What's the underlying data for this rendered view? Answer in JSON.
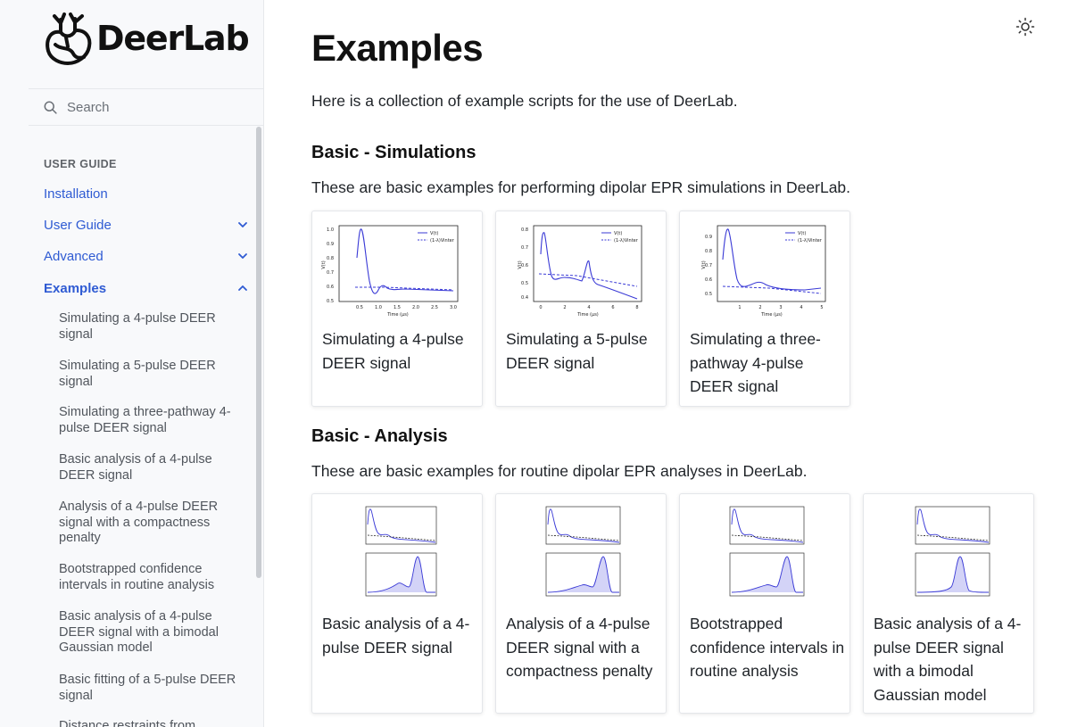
{
  "brand": {
    "name": "DeerLab"
  },
  "search": {
    "placeholder": "Search"
  },
  "sidebar": {
    "caption": "USER GUIDE",
    "top_items": [
      {
        "label": "Installation"
      },
      {
        "label": "User Guide"
      },
      {
        "label": "Advanced"
      },
      {
        "label": "Examples"
      }
    ],
    "sub_items": [
      {
        "label": "Simulating a 4-pulse DEER signal"
      },
      {
        "label": "Simulating a 5-pulse DEER signal"
      },
      {
        "label": "Simulating a three-pathway 4-pulse DEER signal"
      },
      {
        "label": "Basic analysis of a 4-pulse DEER signal"
      },
      {
        "label": "Analysis of a 4-pulse DEER signal with a compactness penalty"
      },
      {
        "label": "Bootstrapped confidence intervals in routine analysis"
      },
      {
        "label": "Basic analysis of a 4-pulse DEER signal with a bimodal Gaussian model"
      },
      {
        "label": "Basic fitting of a 5-pulse DEER signal"
      },
      {
        "label": "Distance restraints from"
      }
    ]
  },
  "page": {
    "title": "Examples",
    "intro": "Here is a collection of example scripts for the use of DeerLab.",
    "sections": [
      {
        "title": "Basic - Simulations",
        "description": "These are basic examples for performing dipolar EPR simulations in DeerLab.",
        "cards": [
          {
            "title": "Simulating a 4-pulse DEER signal",
            "thumb": {
              "xlabel": "Time (μs)",
              "ylabel": "V(t)",
              "legend": [
                "V(t)",
                "(1-λ)Vinter"
              ],
              "xticks": [
                "0.5",
                "1.0",
                "1.5",
                "2.0",
                "2.5",
                "3.0"
              ],
              "yticks": [
                "1.0",
                "0.9",
                "0.8",
                "0.7",
                "0.6",
                "0.5"
              ]
            }
          },
          {
            "title": "Simulating a 5-pulse DEER signal",
            "thumb": {
              "xlabel": "Time (μs)",
              "ylabel": "V(t)",
              "legend": [
                "V(t)",
                "(1-λ)Vinter"
              ],
              "xticks": [
                "0",
                "2",
                "4",
                "6",
                "8"
              ],
              "yticks": [
                "0.8",
                "0.7",
                "0.6",
                "0.5",
                "0.4"
              ]
            }
          },
          {
            "title": "Simulating a three-pathway 4-pulse DEER signal",
            "thumb": {
              "xlabel": "Time (μs)",
              "ylabel": "V(t)",
              "legend": [
                "V(t)",
                "(1-λ)Vinter"
              ],
              "xticks": [
                "1",
                "2",
                "3",
                "4",
                "5"
              ],
              "yticks": [
                "0.9",
                "0.8",
                "0.7",
                "0.6",
                "0.5"
              ]
            }
          }
        ]
      },
      {
        "title": "Basic - Analysis",
        "description": "These are basic examples for routine dipolar EPR analyses in DeerLab.",
        "cards": [
          {
            "title": "Basic analysis of a 4-pulse DEER signal"
          },
          {
            "title": "Analysis of a 4-pulse DEER signal with a compactness penalty"
          },
          {
            "title": "Bootstrapped confidence intervals in routine analysis"
          },
          {
            "title": "Basic analysis of a 4-pulse DEER signal with a bimodal Gaussian model"
          }
        ]
      }
    ]
  },
  "colors": {
    "accent": "#2f5bd3",
    "plot_line": "#3a3ad6"
  },
  "icons": {
    "search": "search-icon",
    "theme": "sun-icon",
    "expand": "chevron-down-icon",
    "collapse": "chevron-up-icon"
  }
}
